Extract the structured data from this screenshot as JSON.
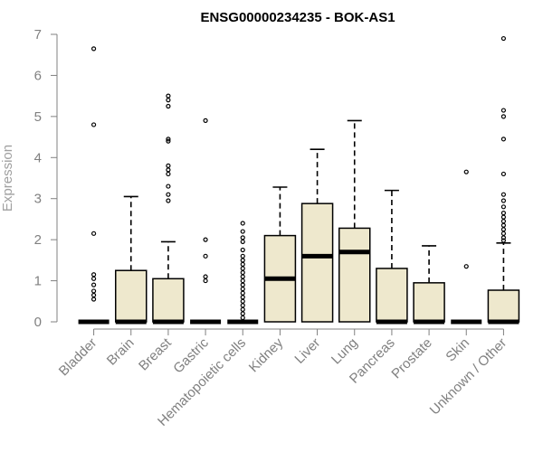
{
  "chart_data": {
    "type": "boxplot",
    "title": "ENSG00000234235 - BOK-AS1",
    "ylabel": "Expression",
    "xlabel": "",
    "ylim": [
      0,
      7
    ],
    "yticks": [
      "0",
      "1",
      "2",
      "3",
      "4",
      "5",
      "6",
      "7"
    ],
    "grid": false,
    "colors": {
      "box_fill": "#EEE8CD",
      "stroke": "#000000",
      "axis": "#808080",
      "label": "#808080"
    },
    "categories": [
      "Bladder",
      "Brain",
      "Breast",
      "Gastric",
      "Hematopoietic cells",
      "Kidney",
      "Liver",
      "Lung",
      "Pancreas",
      "Prostate",
      "Skin",
      "Unknown / Other"
    ],
    "boxes": [
      {
        "category": "Bladder",
        "q1": 0,
        "median": 0,
        "q3": 0,
        "whisker_low": 0,
        "whisker_high": 0,
        "outliers": [
          6.65,
          4.8,
          2.15,
          1.15,
          1.05,
          0.9,
          0.75,
          0.65,
          0.55
        ]
      },
      {
        "category": "Brain",
        "q1": 0,
        "median": 0,
        "q3": 1.25,
        "whisker_low": 0,
        "whisker_high": 3.05,
        "outliers": []
      },
      {
        "category": "Breast",
        "q1": 0,
        "median": 0,
        "q3": 1.05,
        "whisker_low": 0,
        "whisker_high": 1.95,
        "outliers": [
          5.5,
          5.4,
          5.25,
          4.45,
          4.4,
          3.8,
          3.7,
          3.6,
          3.3,
          3.1,
          2.95
        ]
      },
      {
        "category": "Gastric",
        "q1": 0,
        "median": 0,
        "q3": 0,
        "whisker_low": 0,
        "whisker_high": 0,
        "outliers": [
          4.9,
          2.0,
          1.6,
          1.1,
          1.0
        ]
      },
      {
        "category": "Hematopoietic cells",
        "q1": 0,
        "median": 0,
        "q3": 0,
        "whisker_low": 0,
        "whisker_high": 0,
        "outliers": [
          2.4,
          2.2,
          2.05,
          1.95,
          1.75,
          1.6,
          1.5,
          1.4,
          1.3,
          1.2,
          1.1,
          1.0,
          0.9,
          0.8,
          0.7,
          0.6,
          0.5,
          0.4,
          0.3,
          0.2,
          0.1
        ]
      },
      {
        "category": "Kidney",
        "q1": 0,
        "median": 1.05,
        "q3": 2.1,
        "whisker_low": 0,
        "whisker_high": 3.28,
        "outliers": []
      },
      {
        "category": "Liver",
        "q1": 0,
        "median": 1.6,
        "q3": 2.88,
        "whisker_low": 0,
        "whisker_high": 4.2,
        "outliers": []
      },
      {
        "category": "Lung",
        "q1": 0,
        "median": 1.7,
        "q3": 2.28,
        "whisker_low": 0,
        "whisker_high": 4.9,
        "outliers": []
      },
      {
        "category": "Pancreas",
        "q1": 0,
        "median": 0,
        "q3": 1.3,
        "whisker_low": 0,
        "whisker_high": 3.2,
        "outliers": []
      },
      {
        "category": "Prostate",
        "q1": 0,
        "median": 0,
        "q3": 0.95,
        "whisker_low": 0,
        "whisker_high": 1.85,
        "outliers": []
      },
      {
        "category": "Skin",
        "q1": 0,
        "median": 0,
        "q3": 0,
        "whisker_low": 0,
        "whisker_high": 0,
        "outliers": [
          3.65,
          1.35
        ]
      },
      {
        "category": "Unknown / Other",
        "q1": 0,
        "median": 0,
        "q3": 0.77,
        "whisker_low": 0,
        "whisker_high": 1.92,
        "outliers": [
          6.9,
          5.15,
          5.0,
          4.45,
          3.6,
          3.1,
          2.95,
          2.8,
          2.65,
          2.55,
          2.45,
          2.35,
          2.25,
          2.15,
          2.05,
          1.98
        ]
      }
    ]
  }
}
